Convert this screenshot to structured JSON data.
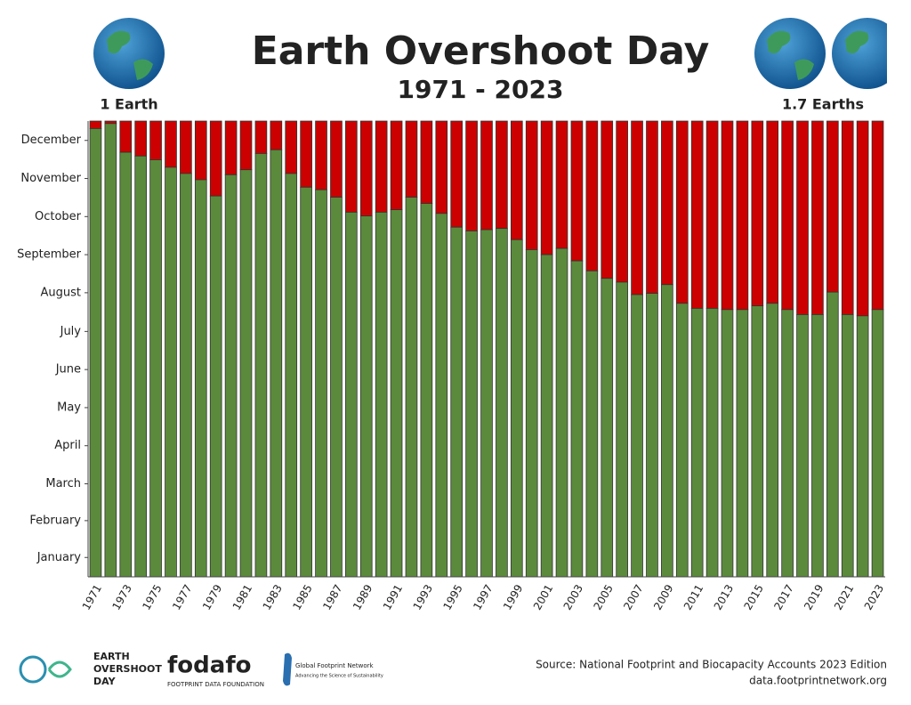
{
  "chart_data": {
    "type": "bar",
    "title": "Earth Overshoot Day",
    "subtitle": "1971 - 2023",
    "annotations": {
      "left": "1 Earth",
      "right": "1.7 Earths"
    },
    "categories": [
      "1971",
      null,
      "1973",
      null,
      "1975",
      null,
      "1977",
      null,
      "1979",
      null,
      "1981",
      null,
      "1983",
      null,
      "1985",
      null,
      "1987",
      null,
      "1989",
      null,
      "1991",
      null,
      "1993",
      null,
      "1995",
      null,
      "1997",
      null,
      "1999",
      null,
      "2001",
      null,
      "2003",
      null,
      "2005",
      null,
      "2007",
      null,
      "2009",
      null,
      "2011",
      null,
      "2013",
      null,
      "2015",
      null,
      "2017",
      null,
      "2019",
      null,
      "2021",
      null,
      "2023"
    ],
    "values": [
      359,
      363,
      340,
      337,
      334,
      328,
      323,
      318,
      305,
      322,
      326,
      339,
      342,
      323,
      312,
      310,
      304,
      292,
      289,
      292,
      294,
      304,
      299,
      291,
      280,
      277,
      278,
      279,
      270,
      262,
      258,
      263,
      253,
      245,
      239,
      236,
      226,
      227,
      234,
      219,
      215,
      215,
      214,
      214,
      217,
      219,
      214,
      210,
      210,
      228,
      210,
      209,
      214
    ],
    "color": "#5b8a3c",
    "remainder_color": "#cc0000",
    "ylim": [
      0,
      365
    ],
    "yticks": [
      {
        "value": 15.5,
        "label": "January"
      },
      {
        "value": 45,
        "label": "February"
      },
      {
        "value": 74.5,
        "label": "March"
      },
      {
        "value": 105,
        "label": "April"
      },
      {
        "value": 135.5,
        "label": "May"
      },
      {
        "value": 166,
        "label": "June"
      },
      {
        "value": 196.5,
        "label": "July"
      },
      {
        "value": 227.5,
        "label": "August"
      },
      {
        "value": 258,
        "label": "September"
      },
      {
        "value": 288.5,
        "label": "October"
      },
      {
        "value": 319,
        "label": "November"
      },
      {
        "value": 349.5,
        "label": "December"
      }
    ]
  },
  "footer": {
    "source": "Source: National Footprint and Biocapacity Accounts 2023 Edition",
    "url": "data.footprintnetwork.org",
    "logo1": [
      "EARTH",
      "OVERSHOOT",
      "DAY"
    ],
    "logo2": "fodafo",
    "logo2_sub": "FOOTPRINT DATA FOUNDATION",
    "logo3": "Global Footprint Network",
    "logo3_sub": "Advancing the Science of Sustainability"
  }
}
